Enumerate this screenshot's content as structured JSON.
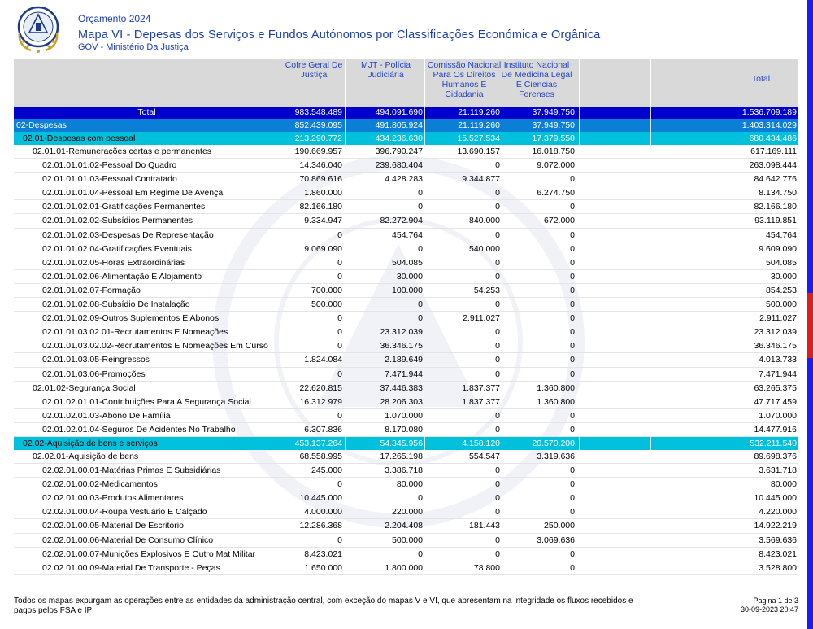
{
  "header": {
    "year_title": "Orçamento 2024",
    "map_title": "Mapa VI - Depesas dos Serviços e Fundos Autónomos por Classificações Económica e Orgânica",
    "ministry": "GOV - Ministério Da Justiça"
  },
  "columns": [
    "Cofre Geral De Justiça",
    "MJT - Polícia Judiciária",
    "Comissão Nacional Para Os Direitos Humanos E Cidadania",
    "Instituto Nacional De Medicina Legal E Ciencias Forenses",
    "",
    "Total"
  ],
  "rows": [
    {
      "type": "total",
      "label": "Total",
      "v": [
        "983.548.489",
        "494.091.690",
        "21.119.260",
        "37.949.750",
        "",
        "1.536.709.189"
      ]
    },
    {
      "type": "div",
      "label": "02-Despesas",
      "v": [
        "852.439.095",
        "491.805.924",
        "21.119.260",
        "37.949.750",
        "",
        "1.403.314.029"
      ]
    },
    {
      "type": "grp",
      "label": "02.01-Despesas com pessoal",
      "v": [
        "213.290.772",
        "434.236.630",
        "15.527.534",
        "17.379.550",
        "",
        "680.434.486"
      ]
    },
    {
      "type": "lvl3",
      "label": "02.01.01-Remunerações certas e permanentes",
      "v": [
        "190.669.957",
        "396.790.247",
        "13.690.157",
        "16.018.750",
        "",
        "617.169.111"
      ]
    },
    {
      "type": "lvl4",
      "label": "02.01.01.01.02-Pessoal Do Quadro",
      "v": [
        "14.346.040",
        "239.680.404",
        "0",
        "9.072.000",
        "",
        "263.098.444"
      ]
    },
    {
      "type": "lvl4",
      "label": "02.01.01.01.03-Pessoal Contratado",
      "v": [
        "70.869.616",
        "4.428.283",
        "9.344.877",
        "0",
        "",
        "84.642.776"
      ]
    },
    {
      "type": "lvl4",
      "label": "02.01.01.01.04-Pessoal Em Regime De Avença",
      "v": [
        "1.860.000",
        "0",
        "0",
        "6.274.750",
        "",
        "8.134.750"
      ]
    },
    {
      "type": "lvl4",
      "label": "02.01.01.02.01-Gratificações Permanentes",
      "v": [
        "82.166.180",
        "0",
        "0",
        "0",
        "",
        "82.166.180"
      ]
    },
    {
      "type": "lvl4",
      "label": "02.01.01.02.02-Subsídios Permanentes",
      "v": [
        "9.334.947",
        "82.272.904",
        "840.000",
        "672.000",
        "",
        "93.119.851"
      ]
    },
    {
      "type": "lvl4",
      "label": "02.01.01.02.03-Despesas De Representação",
      "v": [
        "0",
        "454.764",
        "0",
        "0",
        "",
        "454.764"
      ]
    },
    {
      "type": "lvl4",
      "label": "02.01.01.02.04-Gratificações Eventuais",
      "v": [
        "9.069.090",
        "0",
        "540.000",
        "0",
        "",
        "9.609.090"
      ]
    },
    {
      "type": "lvl4",
      "label": "02.01.01.02.05-Horas Extraordinárias",
      "v": [
        "0",
        "504.085",
        "0",
        "0",
        "",
        "504.085"
      ]
    },
    {
      "type": "lvl4",
      "label": "02.01.01.02.06-Alimentação E Alojamento",
      "v": [
        "0",
        "30.000",
        "0",
        "0",
        "",
        "30.000"
      ]
    },
    {
      "type": "lvl4",
      "label": "02.01.01.02.07-Formação",
      "v": [
        "700.000",
        "100.000",
        "54.253",
        "0",
        "",
        "854.253"
      ]
    },
    {
      "type": "lvl4",
      "label": "02.01.01.02.08-Subsídio De Instalação",
      "v": [
        "500.000",
        "0",
        "0",
        "0",
        "",
        "500.000"
      ]
    },
    {
      "type": "lvl4",
      "label": "02.01.01.02.09-Outros Suplementos E Abonos",
      "v": [
        "0",
        "0",
        "2.911.027",
        "0",
        "",
        "2.911.027"
      ]
    },
    {
      "type": "lvl4",
      "label": "02.01.01.03.02.01-Recrutamentos E Nomeações",
      "v": [
        "0",
        "23.312.039",
        "0",
        "0",
        "",
        "23.312.039"
      ]
    },
    {
      "type": "lvl4",
      "label": "02.01.01.03.02.02-Recrutamentos E Nomeações Em Curso",
      "v": [
        "0",
        "36.346.175",
        "0",
        "0",
        "",
        "36.346.175"
      ]
    },
    {
      "type": "lvl4",
      "label": "02.01.01.03.05-Reingressos",
      "v": [
        "1.824.084",
        "2.189.649",
        "0",
        "0",
        "",
        "4.013.733"
      ]
    },
    {
      "type": "lvl4",
      "label": "02.01.01.03.06-Promoções",
      "v": [
        "0",
        "7.471.944",
        "0",
        "0",
        "",
        "7.471.944"
      ]
    },
    {
      "type": "lvl3",
      "label": "02.01.02-Segurança Social",
      "v": [
        "22.620.815",
        "37.446.383",
        "1.837.377",
        "1.360.800",
        "",
        "63.265.375"
      ]
    },
    {
      "type": "lvl4",
      "label": "02.01.02.01.01-Contribuições Para A Segurança Social",
      "v": [
        "16.312.979",
        "28.206.303",
        "1.837.377",
        "1.360.800",
        "",
        "47.717.459"
      ]
    },
    {
      "type": "lvl4",
      "label": "02.01.02.01.03-Abono De Família",
      "v": [
        "0",
        "1.070.000",
        "0",
        "0",
        "",
        "1.070.000"
      ]
    },
    {
      "type": "lvl4",
      "label": "02.01.02.01.04-Seguros De Acidentes No Trabalho",
      "v": [
        "6.307.836",
        "8.170.080",
        "0",
        "0",
        "",
        "14.477.916"
      ]
    },
    {
      "type": "grp",
      "label": "02.02-Aquisição de bens e serviços",
      "v": [
        "453.137.264",
        "54.345.956",
        "4.158.120",
        "20.570.200",
        "",
        "532.211.540"
      ]
    },
    {
      "type": "lvl3",
      "label": "02.02.01-Aquisição de bens",
      "v": [
        "68.558.995",
        "17.265.198",
        "554.547",
        "3.319.636",
        "",
        "89.698.376"
      ]
    },
    {
      "type": "lvl4",
      "label": "02.02.01.00.01-Matérias Primas E Subsidiárias",
      "v": [
        "245.000",
        "3.386.718",
        "0",
        "0",
        "",
        "3.631.718"
      ]
    },
    {
      "type": "lvl4",
      "label": "02.02.01.00.02-Medicamentos",
      "v": [
        "0",
        "80.000",
        "0",
        "0",
        "",
        "80.000"
      ]
    },
    {
      "type": "lvl4",
      "label": "02.02.01.00.03-Produtos Alimentares",
      "v": [
        "10.445.000",
        "0",
        "0",
        "0",
        "",
        "10.445.000"
      ]
    },
    {
      "type": "lvl4",
      "label": "02.02.01.00.04-Roupa  Vestuário E Calçado",
      "v": [
        "4.000.000",
        "220.000",
        "0",
        "0",
        "",
        "4.220.000"
      ]
    },
    {
      "type": "lvl4",
      "label": "02.02.01.00.05-Material De Escritório",
      "v": [
        "12.286.368",
        "2.204.408",
        "181.443",
        "250.000",
        "",
        "14.922.219"
      ]
    },
    {
      "type": "lvl4",
      "label": "02.02.01.00.06-Material De Consumo Clínico",
      "v": [
        "0",
        "500.000",
        "0",
        "3.069.636",
        "",
        "3.569.636"
      ]
    },
    {
      "type": "lvl4",
      "label": "02.02.01.00.07-Munições  Explosivos E Outro Mat Militar",
      "v": [
        "8.423.021",
        "0",
        "0",
        "0",
        "",
        "8.423.021"
      ]
    },
    {
      "type": "lvl4",
      "label": "02.02.01.00.09-Material De Transporte - Peças",
      "v": [
        "1.650.000",
        "1.800.000",
        "78.800",
        "0",
        "",
        "3.528.800"
      ]
    }
  ],
  "footer": {
    "note": "Todos os mapas expurgam as operações entre as entidades da administração central, com exceção do mapas V e VI, que apresentam na integridade os fluxos recebidos e pagos pelos FSA e IP",
    "page": "Pagina 1 de 3",
    "datetime": "30-09-2023 20:47"
  },
  "colors": {
    "total_row": "#0000cc",
    "division_row": "#0b7fd6",
    "group_row": "#00c0dc",
    "header_bg": "#d9d9d9",
    "title_text": "#1a3da8"
  }
}
